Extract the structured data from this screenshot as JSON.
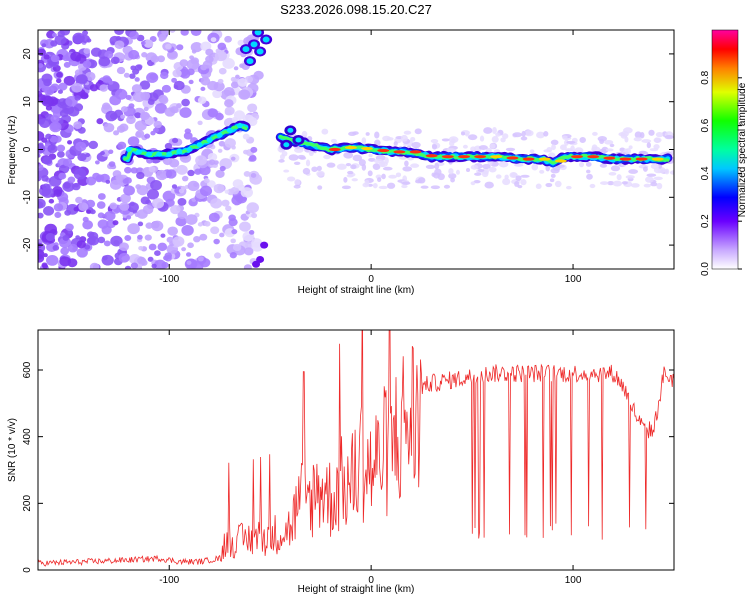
{
  "title": "S233.2026.098.15.20.C27",
  "chart_data": [
    {
      "type": "heatmap",
      "name": "spectrogram",
      "xlabel": "Height of straight line (km)",
      "ylabel": "Frequency (Hz)",
      "xlim": [
        -165,
        150
      ],
      "ylim": [
        -25,
        25
      ],
      "xticks": [
        -100,
        0,
        100
      ],
      "yticks": [
        -20,
        -10,
        0,
        10,
        20
      ],
      "ridge": {
        "x": [
          -120,
          -110,
          -100,
          -90,
          -80,
          -70,
          -65,
          -40,
          -30,
          -20,
          -10,
          0,
          10,
          20,
          30,
          45,
          60,
          75,
          85,
          90,
          95,
          100,
          110,
          120,
          130,
          140,
          148
        ],
        "freq": [
          0,
          -1,
          -1,
          0,
          2,
          4,
          5,
          2,
          1,
          0,
          0.5,
          0,
          -0.5,
          -0.5,
          -1.5,
          -1.5,
          -1.5,
          -2,
          -2,
          -3,
          -1.5,
          -1.5,
          -1.5,
          -2,
          -2,
          -2,
          -2
        ]
      },
      "colorbar": {
        "label": "Normalized spectral amplitude",
        "range": [
          0,
          1
        ],
        "ticks": [
          "0.0",
          "0.2",
          "0.4",
          "0.6",
          "0.8"
        ]
      }
    },
    {
      "type": "line",
      "name": "snr",
      "xlabel": "Height of straight line (km)",
      "ylabel": "SNR (10 * v/v)",
      "xlim": [
        -165,
        150
      ],
      "ylim": [
        0,
        720
      ],
      "xticks": [
        -100,
        0,
        100
      ],
      "yticks": [
        0,
        200,
        400,
        600
      ],
      "color": "#ee2a2a",
      "series": [
        {
          "name": "SNR",
          "x": [
            -165,
            -140,
            -120,
            -105,
            -95,
            -85,
            -75,
            -72,
            -68,
            -60,
            -50,
            -40,
            -35,
            -30,
            -25,
            -20,
            -15,
            -10,
            -5,
            0,
            10,
            15,
            20,
            25,
            30,
            40,
            50,
            60,
            70,
            80,
            90,
            100,
            110,
            120,
            125,
            130,
            135,
            140,
            145,
            150
          ],
          "values": [
            20,
            25,
            30,
            35,
            25,
            25,
            35,
            110,
            100,
            110,
            120,
            150,
            250,
            250,
            300,
            250,
            300,
            300,
            400,
            350,
            450,
            500,
            540,
            550,
            560,
            570,
            580,
            590,
            590,
            590,
            590,
            590,
            590,
            590,
            550,
            480,
            420,
            420,
            590,
            570
          ]
        }
      ]
    }
  ]
}
